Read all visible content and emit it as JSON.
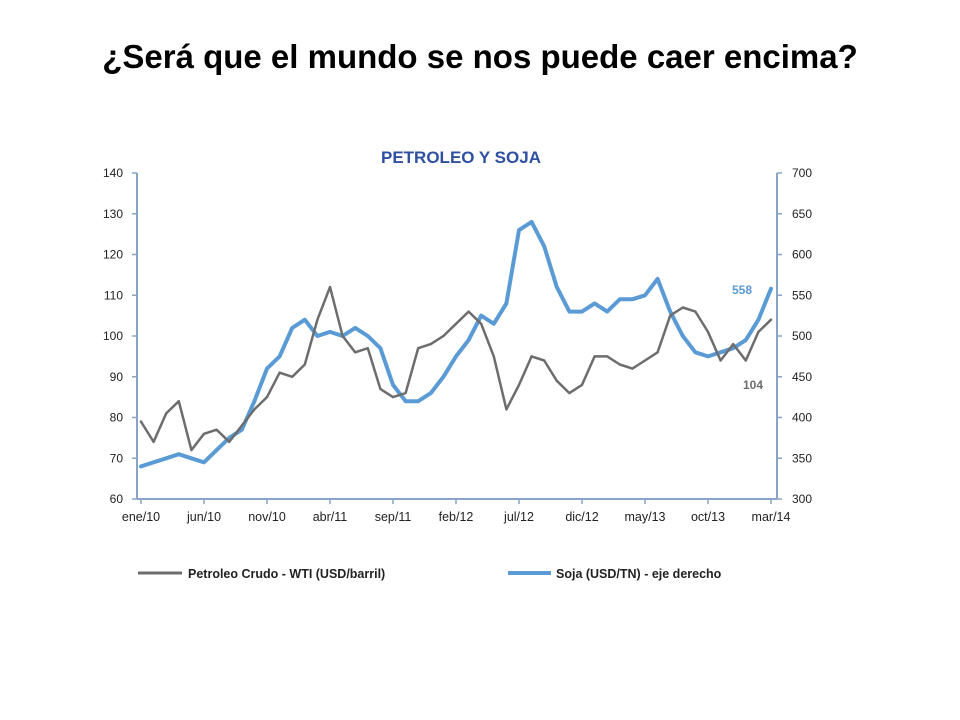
{
  "slide": {
    "title": "¿Será que el mundo se nos puede caer encima?"
  },
  "chart_data": {
    "type": "line",
    "title": "PETROLEO Y SOJA",
    "x_tick_labels": [
      "ene/10",
      "jun/10",
      "nov/10",
      "abr/11",
      "sep/11",
      "feb/12",
      "jul/12",
      "dic/12",
      "may/13",
      "oct/13",
      "mar/14"
    ],
    "y_left": {
      "ticks": [
        60,
        70,
        80,
        90,
        100,
        110,
        120,
        130,
        140
      ],
      "range": [
        60,
        140
      ]
    },
    "y_right": {
      "ticks": [
        300,
        350,
        400,
        450,
        500,
        550,
        600,
        650,
        700
      ],
      "range": [
        300,
        700
      ]
    },
    "legend_position": "bottom",
    "grid": false,
    "series": [
      {
        "name": "Petroleo Crudo - WTI (USD/barril)",
        "axis": "left",
        "color": "#6d6d6d",
        "end_label": "104",
        "points": [
          [
            "ene/10",
            79
          ],
          [
            "feb/10",
            74
          ],
          [
            "mar/10",
            81
          ],
          [
            "abr/10",
            84
          ],
          [
            "may/10",
            72
          ],
          [
            "jun/10",
            76
          ],
          [
            "jul/10",
            77
          ],
          [
            "ago/10",
            74
          ],
          [
            "sep/10",
            78
          ],
          [
            "oct/10",
            82
          ],
          [
            "nov/10",
            85
          ],
          [
            "dic/10",
            91
          ],
          [
            "ene/11",
            90
          ],
          [
            "feb/11",
            93
          ],
          [
            "mar/11",
            104
          ],
          [
            "abr/11",
            112
          ],
          [
            "may/11",
            100
          ],
          [
            "jun/11",
            96
          ],
          [
            "jul/11",
            97
          ],
          [
            "ago/11",
            87
          ],
          [
            "sep/11",
            85
          ],
          [
            "oct/11",
            86
          ],
          [
            "nov/11",
            97
          ],
          [
            "dic/11",
            98
          ],
          [
            "ene/12",
            100
          ],
          [
            "feb/12",
            103
          ],
          [
            "mar/12",
            106
          ],
          [
            "abr/12",
            103
          ],
          [
            "may/12",
            95
          ],
          [
            "jun/12",
            82
          ],
          [
            "jul/12",
            88
          ],
          [
            "ago/12",
            95
          ],
          [
            "sep/12",
            94
          ],
          [
            "oct/12",
            89
          ],
          [
            "nov/12",
            86
          ],
          [
            "dic/12",
            88
          ],
          [
            "ene/13",
            95
          ],
          [
            "feb/13",
            95
          ],
          [
            "mar/13",
            93
          ],
          [
            "abr/13",
            92
          ],
          [
            "may/13",
            94
          ],
          [
            "jun/13",
            96
          ],
          [
            "jul/13",
            105
          ],
          [
            "ago/13",
            107
          ],
          [
            "sep/13",
            106
          ],
          [
            "oct/13",
            101
          ],
          [
            "nov/13",
            94
          ],
          [
            "dic/13",
            98
          ],
          [
            "ene/14",
            94
          ],
          [
            "feb/14",
            101
          ],
          [
            "mar/14",
            104
          ]
        ]
      },
      {
        "name": "Soja (USD/TN) - eje derecho",
        "axis": "right",
        "color": "#5b9bd5",
        "end_label": "558",
        "points": [
          [
            "ene/10",
            340
          ],
          [
            "feb/10",
            345
          ],
          [
            "mar/10",
            350
          ],
          [
            "abr/10",
            355
          ],
          [
            "may/10",
            350
          ],
          [
            "jun/10",
            345
          ],
          [
            "jul/10",
            360
          ],
          [
            "ago/10",
            375
          ],
          [
            "sep/10",
            385
          ],
          [
            "oct/10",
            420
          ],
          [
            "nov/10",
            460
          ],
          [
            "dic/10",
            475
          ],
          [
            "ene/11",
            510
          ],
          [
            "feb/11",
            520
          ],
          [
            "mar/11",
            500
          ],
          [
            "abr/11",
            505
          ],
          [
            "may/11",
            500
          ],
          [
            "jun/11",
            510
          ],
          [
            "jul/11",
            500
          ],
          [
            "ago/11",
            485
          ],
          [
            "sep/11",
            440
          ],
          [
            "oct/11",
            420
          ],
          [
            "nov/11",
            420
          ],
          [
            "dic/11",
            430
          ],
          [
            "ene/12",
            450
          ],
          [
            "feb/12",
            475
          ],
          [
            "mar/12",
            495
          ],
          [
            "abr/12",
            525
          ],
          [
            "may/12",
            515
          ],
          [
            "jun/12",
            540
          ],
          [
            "jul/12",
            630
          ],
          [
            "ago/12",
            640
          ],
          [
            "sep/12",
            610
          ],
          [
            "oct/12",
            560
          ],
          [
            "nov/12",
            530
          ],
          [
            "dic/12",
            530
          ],
          [
            "ene/13",
            540
          ],
          [
            "feb/13",
            530
          ],
          [
            "mar/13",
            545
          ],
          [
            "abr/13",
            545
          ],
          [
            "may/13",
            550
          ],
          [
            "jun/13",
            570
          ],
          [
            "jul/13",
            530
          ],
          [
            "ago/13",
            500
          ],
          [
            "sep/13",
            480
          ],
          [
            "oct/13",
            475
          ],
          [
            "nov/13",
            480
          ],
          [
            "dic/13",
            485
          ],
          [
            "ene/14",
            495
          ],
          [
            "feb/14",
            520
          ],
          [
            "mar/14",
            558
          ]
        ]
      }
    ]
  }
}
